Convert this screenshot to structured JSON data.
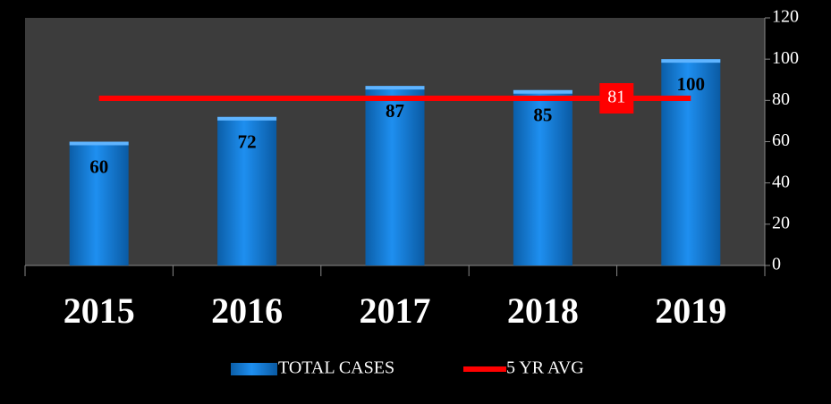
{
  "chart_data": {
    "type": "bar-line",
    "categories": [
      "2015",
      "2016",
      "2017",
      "2018",
      "2019"
    ],
    "series": [
      {
        "name": "TOTAL CASES",
        "color": "#1a7fd8",
        "values": [
          60,
          72,
          87,
          85,
          100
        ]
      },
      {
        "name": "5 YR AVG",
        "color": "#ff0000",
        "values": [
          81,
          81,
          81,
          81,
          81
        ]
      }
    ],
    "ylim": [
      0,
      120
    ],
    "yticks": [
      0,
      20,
      40,
      60,
      80,
      100,
      120
    ],
    "legend": "bottom"
  }
}
